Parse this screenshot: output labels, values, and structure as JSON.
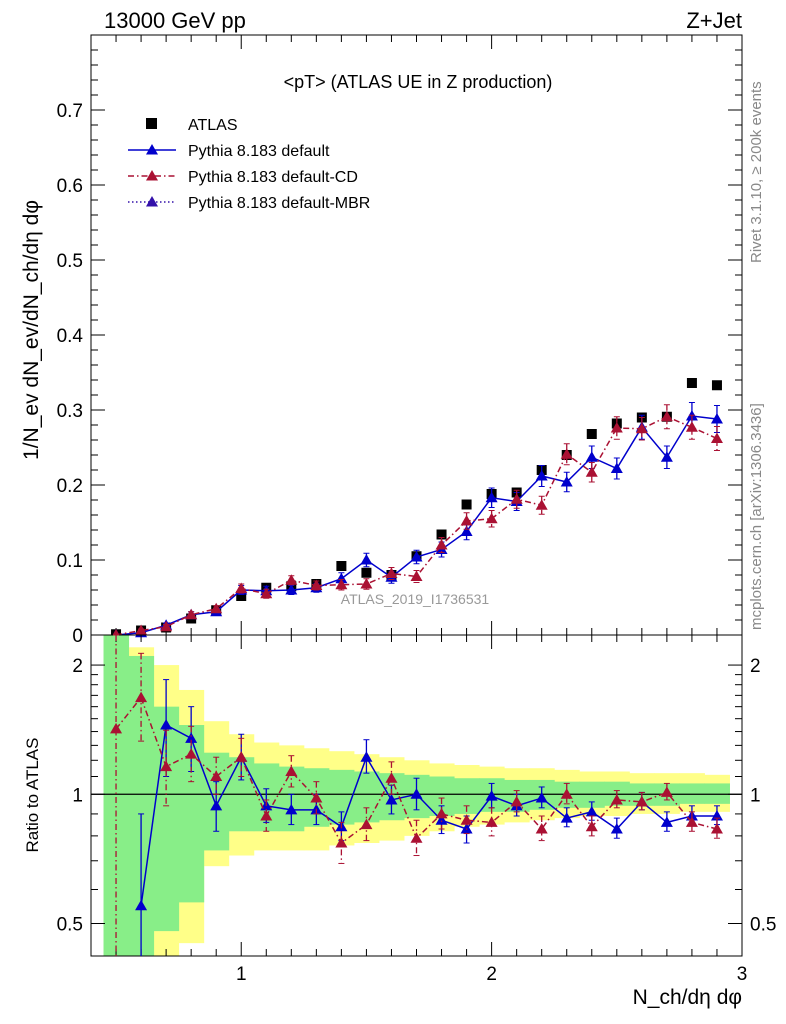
{
  "header": {
    "left_title": "13000 GeV pp",
    "right_title": "Z+Jet"
  },
  "side_labels": {
    "rivet": "Rivet 3.1.10, ≥ 200k events",
    "mcplots": "mcplots.cern.ch [arXiv:1306.3436]"
  },
  "chart_data": [
    {
      "type": "scatter",
      "id": "main",
      "title": "<pT> (ATLAS UE in Z production)",
      "analysis_label": "ATLAS_2019_I1736531",
      "ylabel": "1/N_ev dN_ev/dN_ch/dη dφ",
      "xlabel": "N_ch/dη dφ",
      "xlim": [
        0.4,
        3.0
      ],
      "ylim": [
        0,
        0.8
      ],
      "x_ticks": [
        1,
        2,
        3
      ],
      "y_ticks": [
        0,
        0.1,
        0.2,
        0.3,
        0.4,
        0.5,
        0.6,
        0.7
      ],
      "y_tick_labels": [
        "0",
        "0.1",
        "0.2",
        "0.3",
        "0.4",
        "0.5",
        "0.6",
        "0.7"
      ],
      "legend": [
        "ATLAS",
        "Pythia 8.183 default",
        "Pythia 8.183 default-CD",
        "Pythia 8.183 default-MBR"
      ],
      "legend_position": "top-left",
      "series": [
        {
          "name": "ATLAS",
          "style": "square",
          "color": "#000000",
          "x": [
            0.5,
            0.6,
            0.7,
            0.8,
            0.9,
            1.0,
            1.1,
            1.2,
            1.3,
            1.4,
            1.5,
            1.6,
            1.7,
            1.8,
            1.9,
            2.0,
            2.1,
            2.2,
            2.3,
            2.4,
            2.5,
            2.6,
            2.7,
            2.8,
            2.9
          ],
          "y": [
            0.001,
            0.006,
            0.01,
            0.022,
            0.033,
            0.052,
            0.063,
            0.065,
            0.068,
            0.092,
            0.083,
            0.08,
            0.105,
            0.134,
            0.174,
            0.188,
            0.19,
            0.22,
            0.24,
            0.268,
            0.282,
            0.29,
            0.291,
            0.336,
            0.333
          ]
        },
        {
          "name": "Pythia 8.183 default",
          "style": "solid",
          "color": "#0000cc",
          "x": [
            0.5,
            0.6,
            0.7,
            0.8,
            0.9,
            1.0,
            1.1,
            1.2,
            1.3,
            1.4,
            1.5,
            1.6,
            1.7,
            1.8,
            1.9,
            2.0,
            2.1,
            2.2,
            2.3,
            2.4,
            2.5,
            2.6,
            2.7,
            2.8,
            2.9
          ],
          "y": [
            0.0,
            0.003,
            0.013,
            0.027,
            0.031,
            0.06,
            0.059,
            0.06,
            0.063,
            0.075,
            0.1,
            0.077,
            0.104,
            0.114,
            0.138,
            0.183,
            0.178,
            0.212,
            0.204,
            0.237,
            0.222,
            0.277,
            0.237,
            0.292,
            0.288
          ],
          "err": [
            0,
            0.002,
            0.003,
            0.004,
            0.004,
            0.006,
            0.006,
            0.006,
            0.006,
            0.008,
            0.009,
            0.008,
            0.009,
            0.01,
            0.011,
            0.013,
            0.012,
            0.014,
            0.013,
            0.015,
            0.014,
            0.016,
            0.015,
            0.018,
            0.018
          ]
        },
        {
          "name": "Pythia 8.183 default-CD",
          "style": "dashdot",
          "color": "#aa1133",
          "x": [
            0.5,
            0.6,
            0.7,
            0.8,
            0.9,
            1.0,
            1.1,
            1.2,
            1.3,
            1.4,
            1.5,
            1.6,
            1.7,
            1.8,
            1.9,
            2.0,
            2.1,
            2.2,
            2.3,
            2.4,
            2.5,
            2.6,
            2.7,
            2.8,
            2.9
          ],
          "y": [
            0.0,
            0.006,
            0.011,
            0.027,
            0.035,
            0.062,
            0.055,
            0.073,
            0.066,
            0.067,
            0.068,
            0.082,
            0.078,
            0.12,
            0.152,
            0.155,
            0.181,
            0.173,
            0.241,
            0.217,
            0.276,
            0.275,
            0.291,
            0.277,
            0.262
          ],
          "err": [
            0,
            0.002,
            0.003,
            0.004,
            0.004,
            0.006,
            0.006,
            0.006,
            0.006,
            0.007,
            0.007,
            0.008,
            0.008,
            0.01,
            0.011,
            0.011,
            0.012,
            0.012,
            0.014,
            0.013,
            0.015,
            0.015,
            0.016,
            0.016,
            0.016
          ]
        },
        {
          "name": "Pythia 8.183 default-MBR",
          "style": "dotted",
          "color": "#3311aa",
          "x": [],
          "y": []
        }
      ]
    },
    {
      "type": "scatter",
      "id": "ratio",
      "ylabel": "Ratio to ATLAS",
      "xlim": [
        0.4,
        3.0
      ],
      "ylim": [
        0.42,
        2.35
      ],
      "y_ticks": [
        0.5,
        1,
        2
      ],
      "y_tick_labels": [
        "0.5",
        "1",
        "2"
      ],
      "bands": {
        "x_edges": [
          0.45,
          0.55,
          0.65,
          0.75,
          0.85,
          0.95,
          1.05,
          1.15,
          1.25,
          1.35,
          1.45,
          1.55,
          1.65,
          1.75,
          1.85,
          1.95,
          2.05,
          2.15,
          2.25,
          2.35,
          2.45,
          2.55,
          2.65,
          2.75,
          2.85,
          2.95
        ],
        "yellow_lo": [
          0.3,
          0.3,
          0.35,
          0.45,
          0.68,
          0.72,
          0.74,
          0.74,
          0.74,
          0.76,
          0.77,
          0.78,
          0.8,
          0.82,
          0.84,
          0.85,
          0.86,
          0.87,
          0.88,
          0.89,
          0.89,
          0.9,
          0.9,
          0.91,
          0.91
        ],
        "yellow_hi": [
          2.4,
          2.2,
          2.0,
          1.75,
          1.48,
          1.38,
          1.32,
          1.3,
          1.28,
          1.26,
          1.24,
          1.22,
          1.2,
          1.18,
          1.17,
          1.16,
          1.15,
          1.15,
          1.14,
          1.13,
          1.13,
          1.12,
          1.12,
          1.12,
          1.11
        ],
        "green_lo": [
          0.3,
          0.3,
          0.48,
          0.56,
          0.74,
          0.82,
          0.82,
          0.82,
          0.84,
          0.85,
          0.86,
          0.87,
          0.88,
          0.89,
          0.9,
          0.91,
          0.91,
          0.92,
          0.93,
          0.93,
          0.94,
          0.94,
          0.94,
          0.95,
          0.95
        ],
        "green_hi": [
          2.4,
          2.1,
          1.6,
          1.45,
          1.25,
          1.22,
          1.18,
          1.16,
          1.15,
          1.14,
          1.13,
          1.12,
          1.11,
          1.1,
          1.09,
          1.09,
          1.08,
          1.08,
          1.07,
          1.07,
          1.07,
          1.06,
          1.06,
          1.06,
          1.06
        ]
      },
      "series": [
        {
          "name": "Pythia 8.183 default",
          "style": "solid",
          "color": "#0000cc",
          "x": [
            0.6,
            0.7,
            0.8,
            0.9,
            1.0,
            1.1,
            1.2,
            1.3,
            1.4,
            1.5,
            1.6,
            1.7,
            1.8,
            1.9,
            2.0,
            2.1,
            2.2,
            2.3,
            2.4,
            2.5,
            2.6,
            2.7,
            2.8,
            2.9
          ],
          "y": [
            0.55,
            1.45,
            1.35,
            0.94,
            1.22,
            0.94,
            0.92,
            0.92,
            0.84,
            1.22,
            0.97,
            1.0,
            0.87,
            0.83,
            0.99,
            0.94,
            0.98,
            0.88,
            0.91,
            0.83,
            0.96,
            0.86,
            0.89,
            0.89
          ],
          "err_lo": [
            0.2,
            0.35,
            0.22,
            0.12,
            0.14,
            0.08,
            0.07,
            0.07,
            0.06,
            0.1,
            0.07,
            0.08,
            0.06,
            0.06,
            0.06,
            0.05,
            0.05,
            0.04,
            0.04,
            0.04,
            0.04,
            0.04,
            0.04,
            0.04
          ],
          "err_hi": [
            0.35,
            0.4,
            0.25,
            0.13,
            0.16,
            0.09,
            0.08,
            0.08,
            0.07,
            0.12,
            0.08,
            0.09,
            0.07,
            0.06,
            0.07,
            0.06,
            0.06,
            0.05,
            0.05,
            0.05,
            0.05,
            0.05,
            0.05,
            0.05
          ]
        },
        {
          "name": "Pythia 8.183 default-CD",
          "style": "dashdot",
          "color": "#aa1133",
          "x": [
            0.5,
            0.6,
            0.7,
            0.8,
            0.9,
            1.0,
            1.1,
            1.2,
            1.3,
            1.4,
            1.5,
            1.6,
            1.7,
            1.8,
            1.9,
            2.0,
            2.1,
            2.2,
            2.3,
            2.4,
            2.5,
            2.6,
            2.7,
            2.8,
            2.9
          ],
          "y": [
            1.42,
            1.68,
            1.16,
            1.24,
            1.1,
            1.22,
            0.89,
            1.13,
            0.98,
            0.77,
            0.85,
            1.09,
            0.79,
            0.9,
            0.87,
            0.86,
            0.96,
            0.83,
            1.0,
            0.84,
            0.97,
            0.96,
            1.01,
            0.86,
            0.83
          ],
          "err_lo": [
            1.0,
            0.35,
            0.22,
            0.17,
            0.1,
            0.12,
            0.07,
            0.09,
            0.08,
            0.08,
            0.07,
            0.09,
            0.07,
            0.07,
            0.06,
            0.06,
            0.05,
            0.05,
            0.05,
            0.04,
            0.04,
            0.04,
            0.04,
            0.04,
            0.04
          ],
          "err_hi": [
            1.0,
            0.45,
            0.25,
            0.2,
            0.12,
            0.13,
            0.08,
            0.1,
            0.09,
            0.09,
            0.08,
            0.1,
            0.08,
            0.08,
            0.07,
            0.07,
            0.06,
            0.06,
            0.06,
            0.05,
            0.05,
            0.05,
            0.05,
            0.05,
            0.05
          ]
        }
      ]
    }
  ]
}
